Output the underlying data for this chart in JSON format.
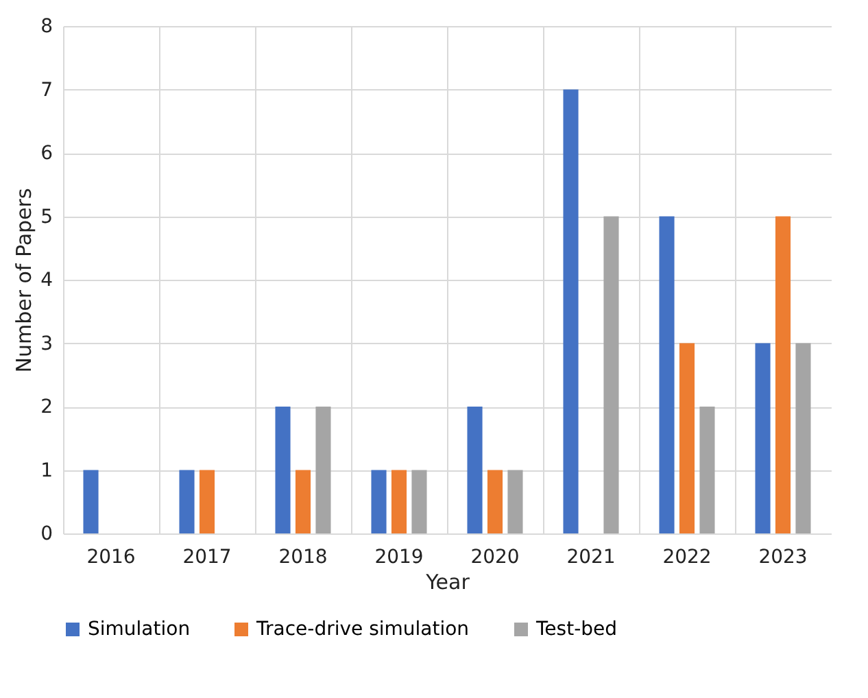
{
  "chart_data": {
    "type": "bar",
    "xlabel": "Year",
    "ylabel": "Number of Papers",
    "categories": [
      "2016",
      "2017",
      "2018",
      "2019",
      "2020",
      "2021",
      "2022",
      "2023"
    ],
    "series": [
      {
        "name": "Simulation",
        "color": "#4472c4",
        "values": [
          1,
          1,
          2,
          1,
          2,
          7,
          5,
          3
        ]
      },
      {
        "name": "Trace-drive simulation",
        "color": "#ed7d31",
        "values": [
          0,
          1,
          1,
          1,
          1,
          0,
          3,
          5
        ]
      },
      {
        "name": "Test-bed",
        "color": "#a5a5a5",
        "values": [
          0,
          0,
          2,
          1,
          1,
          5,
          2,
          3
        ]
      }
    ],
    "ylim": [
      0,
      8
    ],
    "yticks": [
      0,
      1,
      2,
      3,
      4,
      5,
      6,
      7,
      8
    ],
    "grid": true,
    "legend": "bottom"
  }
}
